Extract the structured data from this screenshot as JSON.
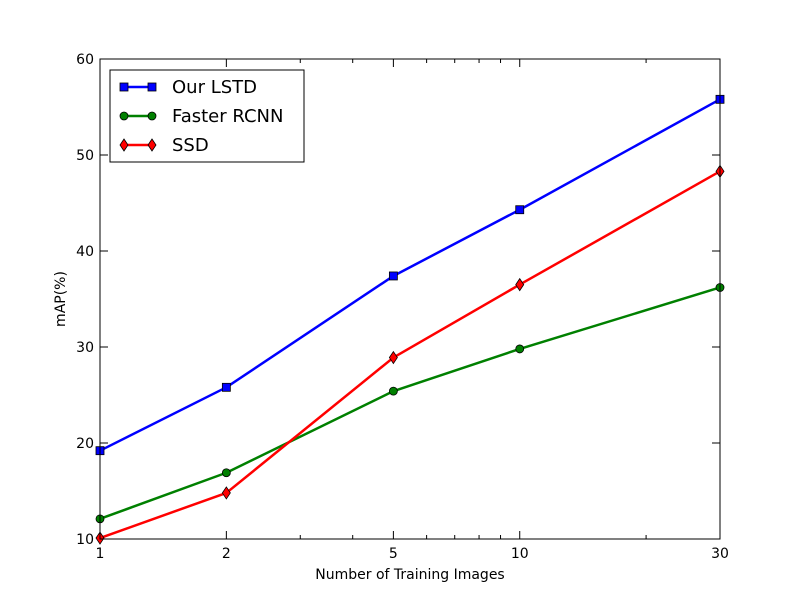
{
  "chart_data": {
    "type": "line",
    "title": "",
    "xlabel": "Number of Training Images",
    "ylabel": "mAP(%)",
    "x_scale": "log",
    "x": [
      1,
      2,
      5,
      10,
      30
    ],
    "xticks": [
      "1",
      "2",
      "5",
      "10",
      "30"
    ],
    "xlim": [
      1,
      30
    ],
    "ylim": [
      10,
      60
    ],
    "yticks": [
      "10",
      "20",
      "30",
      "40",
      "50",
      "60"
    ],
    "grid": false,
    "legend_position": "top-left",
    "series": [
      {
        "name": "Our LSTD",
        "values": [
          19.2,
          25.8,
          37.4,
          44.3,
          55.8
        ],
        "color": "#0000ff",
        "marker": "square"
      },
      {
        "name": "Faster RCNN",
        "values": [
          12.1,
          16.9,
          25.4,
          29.8,
          36.2
        ],
        "color": "#008000",
        "marker": "circle"
      },
      {
        "name": "SSD",
        "values": [
          10.1,
          14.8,
          28.9,
          36.5,
          48.3
        ],
        "color": "#ff0000",
        "marker": "diamond"
      }
    ]
  }
}
